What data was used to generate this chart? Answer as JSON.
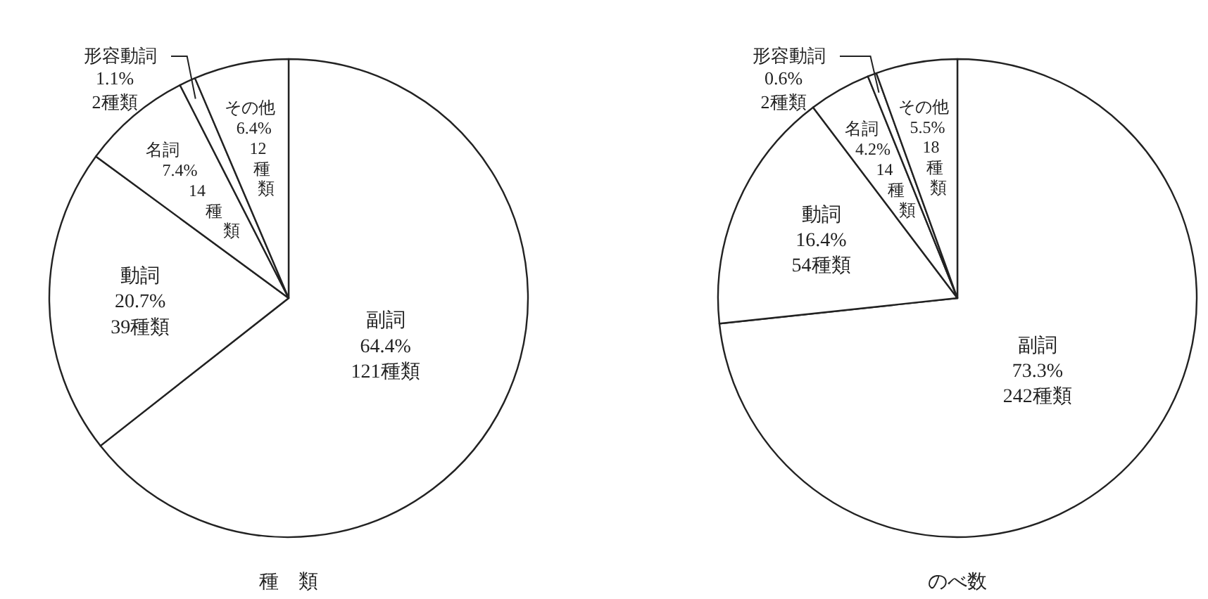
{
  "chart_data": [
    {
      "type": "pie",
      "title": "種　類",
      "categories": [
        "副詞",
        "動詞",
        "名詞",
        "形容動詞",
        "その他"
      ],
      "values": [
        64.4,
        20.7,
        7.4,
        1.1,
        6.4
      ],
      "value_labels": [
        "64.4%",
        "20.7%",
        "7.4%",
        "1.1%",
        "6.4%"
      ],
      "annotations": [
        "121種類",
        "39種類",
        "14種類",
        "2種類",
        "12種類"
      ],
      "colors": [
        "#ffffff",
        "#ffffff",
        "#ffffff",
        "#ffffff",
        "#ffffff"
      ]
    },
    {
      "type": "pie",
      "title": "のべ数",
      "categories": [
        "副詞",
        "動詞",
        "名詞",
        "形容動詞",
        "その他"
      ],
      "values": [
        73.3,
        16.4,
        4.2,
        0.6,
        5.5
      ],
      "value_labels": [
        "73.3%",
        "16.4%",
        "4.2%",
        "0.6%",
        "5.5%"
      ],
      "annotations": [
        "242種類",
        "54種類",
        "14種類",
        "2種類",
        "18種類"
      ],
      "colors": [
        "#ffffff",
        "#ffffff",
        "#ffffff",
        "#ffffff",
        "#ffffff"
      ]
    }
  ]
}
